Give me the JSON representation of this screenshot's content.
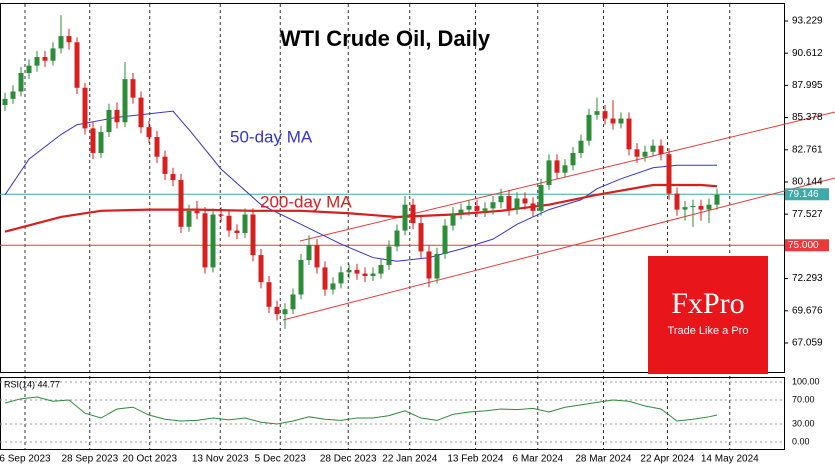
{
  "chart_data": {
    "type": "candlestick",
    "title": "WTI Crude Oil, Daily",
    "up_color": "#2e8b3a",
    "down_color": "#d81f1f",
    "xlim": [
      -0.625,
      97.375
    ],
    "xticks": [
      {
        "value": 2.5,
        "label": "6 Sep 2023"
      },
      {
        "value": 10.6,
        "label": "28 Sep 2023"
      },
      {
        "value": 18.1,
        "label": "20 Oct 2023"
      },
      {
        "value": 26.9,
        "label": "13 Nov 2023"
      },
      {
        "value": 34.4,
        "label": "5 Dec 2023"
      },
      {
        "value": 42.9,
        "label": "28 Dec 2023"
      },
      {
        "value": 50.6,
        "label": "22 Jan 2024"
      },
      {
        "value": 58.8,
        "label": "13 Feb 2024"
      },
      {
        "value": 66.6,
        "label": "6 Mar 2024"
      },
      {
        "value": 74.8,
        "label": "28 Mar 2024"
      },
      {
        "value": 82.8,
        "label": "22 Apr 2024"
      },
      {
        "value": 90.6,
        "label": "14 May 2024"
      }
    ],
    "ylim": [
      64.7,
      94.61
    ],
    "yticks": [
      {
        "value": 93.229,
        "label": "93.229"
      },
      {
        "value": 90.612,
        "label": "90.612"
      },
      {
        "value": 87.995,
        "label": "87.995"
      },
      {
        "value": 85.378,
        "label": "85.378"
      },
      {
        "value": 82.761,
        "label": "82.761"
      },
      {
        "value": 80.144,
        "label": "80.144"
      },
      {
        "value": 77.527,
        "label": "77.527"
      },
      {
        "value": 72.293,
        "label": "72.293"
      },
      {
        "value": 69.676,
        "label": "69.676"
      },
      {
        "value": 67.059,
        "label": "67.059"
      }
    ],
    "level_line": {
      "value": 75,
      "label": "75.000",
      "color": "#e83a3a"
    },
    "last_price": {
      "value": 79.146,
      "label": "79.146",
      "color": "#3fa8a8"
    },
    "ohlc": [
      [
        86.4,
        87.4,
        85.9,
        86.9
      ],
      [
        86.9,
        88.0,
        86.5,
        87.5
      ],
      [
        87.5,
        89.5,
        87.1,
        89.0
      ],
      [
        89.0,
        90.1,
        88.5,
        89.6
      ],
      [
        89.6,
        90.8,
        89.1,
        90.3
      ],
      [
        90.3,
        90.8,
        89.5,
        90.0
      ],
      [
        90.0,
        91.5,
        89.6,
        91.0
      ],
      [
        91.0,
        93.7,
        90.6,
        92.0
      ],
      [
        92.0,
        92.6,
        90.9,
        91.5
      ],
      [
        91.5,
        91.9,
        87.3,
        87.8
      ],
      [
        87.8,
        88.2,
        84.0,
        84.5
      ],
      [
        84.5,
        85.0,
        82.0,
        82.5
      ],
      [
        82.5,
        84.7,
        82.1,
        84.2
      ],
      [
        84.2,
        86.5,
        83.8,
        86.0
      ],
      [
        86.0,
        86.6,
        84.5,
        85.0
      ],
      [
        85.0,
        89.9,
        84.6,
        88.5
      ],
      [
        88.5,
        89.0,
        86.5,
        87.0
      ],
      [
        87.0,
        87.5,
        84.1,
        84.6
      ],
      [
        84.6,
        85.1,
        83.3,
        83.8
      ],
      [
        83.8,
        84.3,
        81.7,
        82.2
      ],
      [
        82.2,
        82.7,
        80.3,
        80.8
      ],
      [
        80.8,
        81.3,
        79.8,
        80.3
      ],
      [
        80.3,
        80.8,
        76.0,
        76.5
      ],
      [
        76.5,
        78.3,
        76.1,
        77.8
      ],
      [
        77.8,
        78.6,
        77.1,
        77.6
      ],
      [
        77.6,
        78.1,
        72.7,
        73.2
      ],
      [
        73.2,
        78.0,
        72.8,
        77.5
      ],
      [
        77.5,
        78.1,
        76.9,
        77.4
      ],
      [
        77.4,
        77.9,
        75.7,
        76.2
      ],
      [
        76.2,
        76.7,
        75.5,
        76.0
      ],
      [
        76.0,
        78.0,
        75.6,
        77.5
      ],
      [
        77.5,
        78.0,
        73.7,
        74.2
      ],
      [
        74.2,
        74.7,
        71.5,
        72.0
      ],
      [
        72.0,
        72.5,
        69.5,
        70.0
      ],
      [
        70.0,
        70.5,
        68.9,
        69.4
      ],
      [
        69.4,
        70.3,
        68.2,
        69.8
      ],
      [
        69.8,
        71.5,
        69.4,
        71.0
      ],
      [
        71.0,
        74.3,
        70.6,
        73.8
      ],
      [
        73.8,
        75.8,
        73.4,
        75.0
      ],
      [
        75.0,
        75.5,
        72.7,
        73.2
      ],
      [
        73.2,
        73.7,
        70.9,
        71.4
      ],
      [
        71.4,
        72.4,
        71.0,
        71.9
      ],
      [
        71.9,
        73.3,
        71.5,
        72.8
      ],
      [
        72.8,
        73.5,
        72.3,
        73.0
      ],
      [
        73.0,
        73.5,
        72.2,
        72.7
      ],
      [
        72.7,
        73.2,
        72.0,
        72.5
      ],
      [
        72.5,
        73.2,
        72.1,
        72.7
      ],
      [
        72.7,
        73.9,
        72.3,
        73.4
      ],
      [
        73.4,
        75.4,
        73.0,
        74.9
      ],
      [
        74.9,
        76.7,
        74.5,
        76.2
      ],
      [
        76.2,
        79.0,
        75.8,
        78.3
      ],
      [
        78.3,
        78.8,
        76.3,
        76.8
      ],
      [
        76.8,
        77.3,
        74.0,
        74.5
      ],
      [
        74.5,
        75.0,
        71.6,
        72.3
      ],
      [
        72.3,
        74.8,
        71.9,
        74.3
      ],
      [
        74.3,
        77.1,
        73.9,
        76.6
      ],
      [
        76.6,
        78.1,
        76.2,
        77.6
      ],
      [
        77.6,
        78.4,
        77.1,
        77.9
      ],
      [
        77.9,
        78.7,
        77.4,
        78.2
      ],
      [
        78.2,
        78.7,
        77.3,
        77.8
      ],
      [
        77.8,
        78.5,
        77.3,
        78.0
      ],
      [
        78.0,
        79.0,
        77.5,
        78.5
      ],
      [
        78.5,
        79.6,
        78.0,
        79.0
      ],
      [
        79.0,
        79.5,
        77.4,
        77.9
      ],
      [
        77.9,
        79.3,
        77.5,
        78.8
      ],
      [
        78.8,
        79.3,
        77.9,
        78.4
      ],
      [
        78.4,
        78.9,
        77.3,
        77.8
      ],
      [
        77.8,
        80.4,
        77.4,
        79.9
      ],
      [
        79.9,
        82.4,
        79.5,
        81.9
      ],
      [
        81.9,
        82.4,
        80.4,
        80.9
      ],
      [
        80.9,
        82.0,
        80.5,
        81.5
      ],
      [
        81.5,
        83.0,
        81.1,
        82.5
      ],
      [
        82.5,
        84.0,
        82.1,
        83.5
      ],
      [
        83.5,
        86.1,
        83.1,
        85.6
      ],
      [
        85.6,
        87.0,
        85.2,
        85.9
      ],
      [
        85.9,
        86.4,
        84.8,
        85.3
      ],
      [
        85.3,
        86.8,
        84.4,
        84.9
      ],
      [
        84.9,
        85.8,
        84.5,
        85.3
      ],
      [
        85.3,
        85.8,
        82.3,
        82.8
      ],
      [
        82.8,
        83.3,
        81.7,
        82.2
      ],
      [
        82.2,
        83.1,
        81.8,
        82.6
      ],
      [
        82.6,
        83.6,
        82.2,
        83.1
      ],
      [
        83.1,
        83.6,
        81.9,
        82.4
      ],
      [
        82.4,
        82.9,
        78.7,
        79.2
      ],
      [
        79.2,
        79.7,
        77.4,
        77.9
      ],
      [
        77.9,
        78.6,
        77.0,
        78.1
      ],
      [
        78.1,
        78.7,
        76.5,
        78.2
      ],
      [
        78.2,
        78.7,
        77.0,
        77.9
      ],
      [
        77.9,
        78.8,
        76.8,
        78.3
      ],
      [
        78.3,
        79.6,
        77.9,
        79.1
      ]
    ],
    "moving_averages": [
      {
        "name": "50-day MA",
        "color": "#3535c8",
        "x": [
          0,
          3,
          7,
          9,
          14,
          21,
          23,
          27,
          32,
          37,
          42,
          46,
          49,
          53,
          57,
          61,
          64,
          68,
          72,
          74,
          77,
          81,
          84,
          89
        ],
        "values": [
          79.1,
          82.0,
          84.0,
          84.8,
          85.4,
          85.9,
          84.4,
          81.2,
          78.3,
          76.7,
          75.1,
          74.0,
          73.7,
          74.0,
          74.7,
          75.5,
          76.7,
          77.9,
          78.7,
          79.6,
          80.4,
          81.3,
          81.5,
          81.5
        ]
      },
      {
        "name": "200-day MA",
        "color": "#d81f1f",
        "x": [
          0,
          7,
          12,
          18,
          24,
          31,
          37,
          43,
          49,
          56,
          62,
          68,
          74,
          81,
          87,
          89
        ],
        "values": [
          76.1,
          77.3,
          77.8,
          77.9,
          77.9,
          77.8,
          77.8,
          77.6,
          77.3,
          77.5,
          77.8,
          78.3,
          79.1,
          79.9,
          79.9,
          79.8
        ]
      }
    ],
    "rsi": {
      "label": "RSI(14) 44.77",
      "color": "#2e8b3a",
      "ylim": [
        -13.3,
        106.7
      ],
      "yticks": [
        {
          "value": 100,
          "label": "100.00"
        },
        {
          "value": 70,
          "label": "70.00"
        },
        {
          "value": 30,
          "label": "30.00"
        },
        {
          "value": 0,
          "label": "0.00"
        }
      ],
      "x": [
        0,
        2,
        4,
        6,
        8,
        10,
        12,
        14,
        16,
        18,
        20,
        22,
        24,
        26,
        28,
        30,
        32,
        34,
        36,
        38,
        40,
        42,
        44,
        46,
        48,
        50,
        52,
        54,
        56,
        58,
        60,
        62,
        64,
        66,
        68,
        70,
        72,
        74,
        76,
        78,
        80,
        82,
        84,
        86,
        88,
        89
      ],
      "values": [
        65,
        72,
        75,
        68,
        70,
        48,
        40,
        55,
        58,
        45,
        38,
        35,
        36,
        40,
        37,
        40,
        33,
        30,
        35,
        42,
        38,
        36,
        40,
        40,
        44,
        52,
        40,
        36,
        46,
        50,
        52,
        55,
        54,
        56,
        50,
        58,
        62,
        66,
        70,
        68,
        60,
        55,
        35,
        38,
        42,
        45
      ]
    },
    "brand": {
      "name": "FxPro",
      "tagline": "Trade Like a Pro"
    }
  }
}
